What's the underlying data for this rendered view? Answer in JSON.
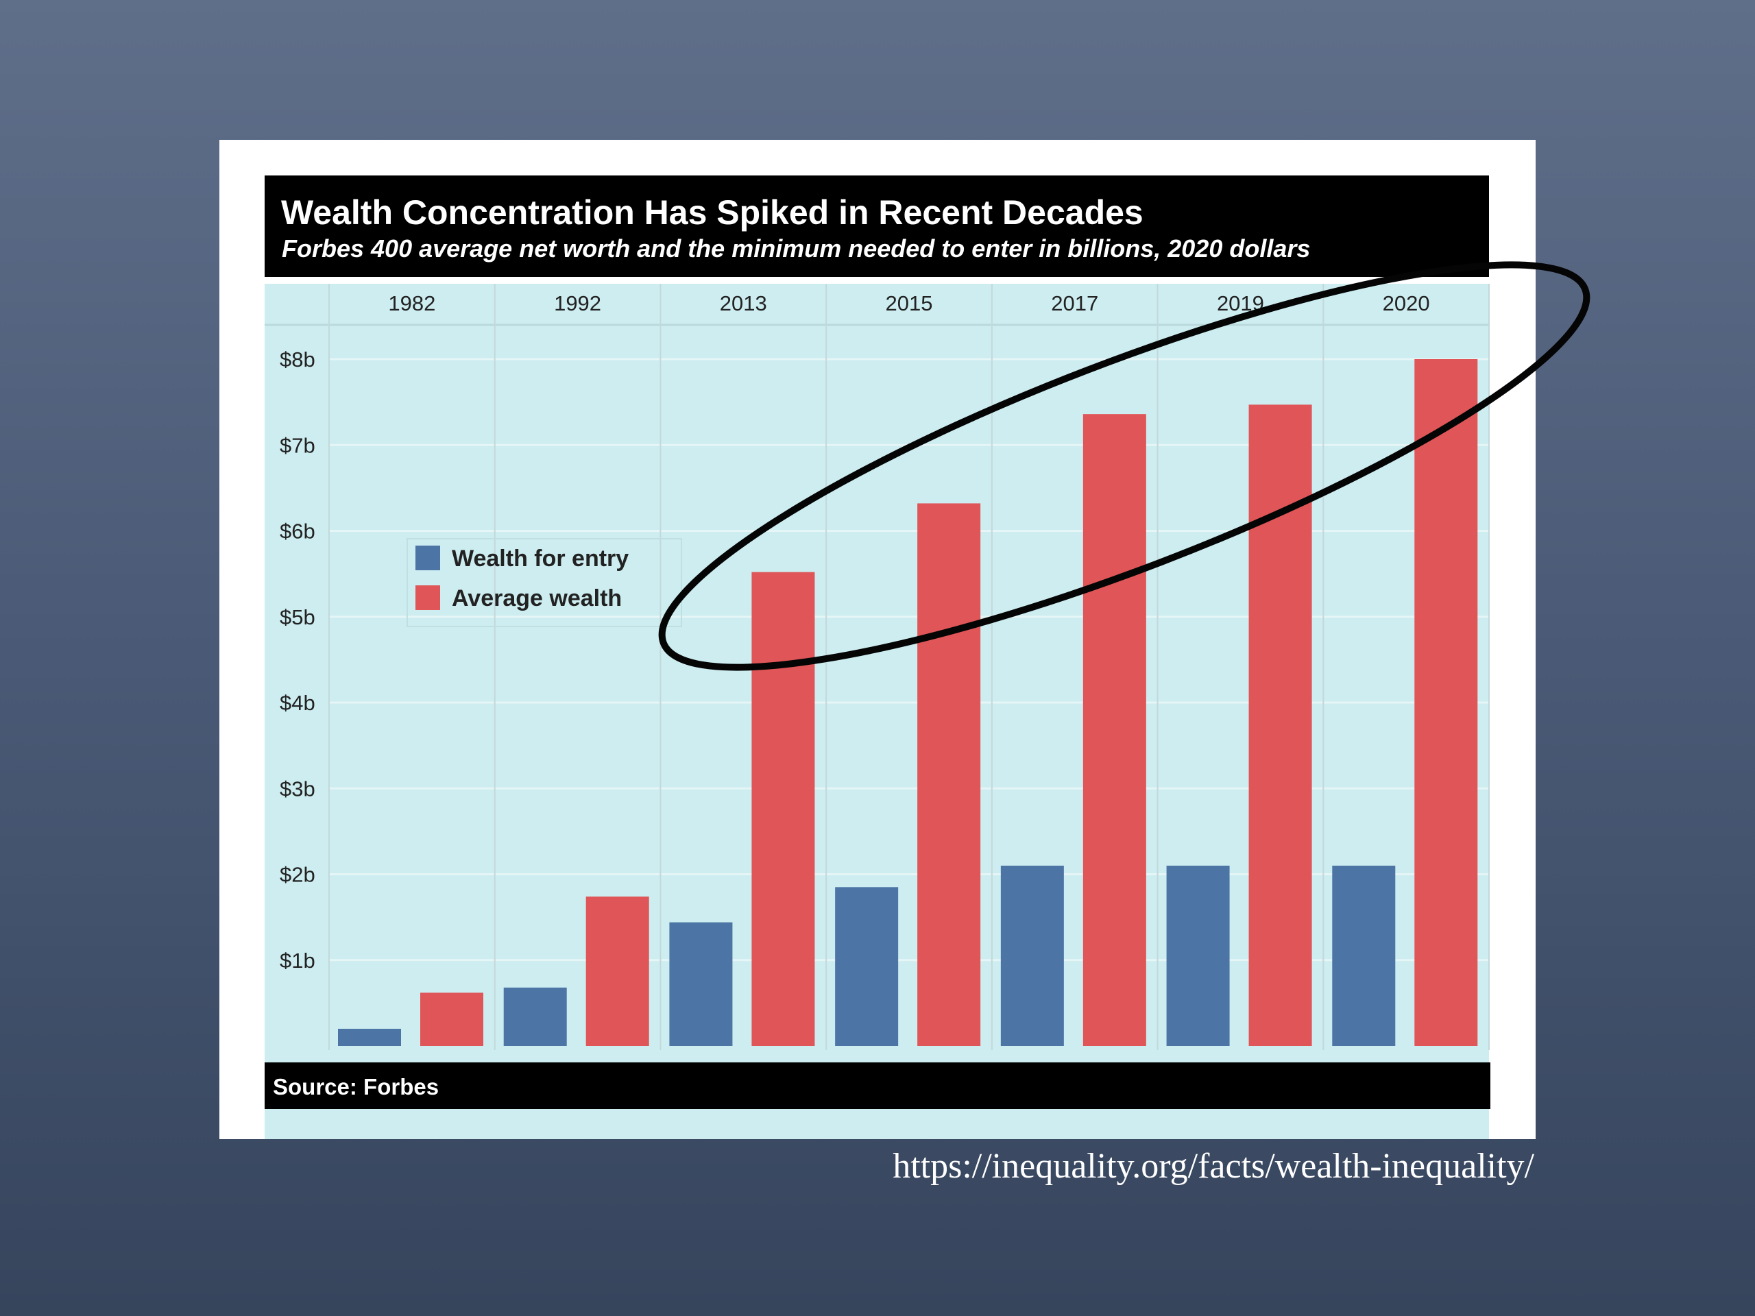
{
  "source_url": "https://inequality.org/facts/wealth-inequality/",
  "chart_data": {
    "type": "bar",
    "title": "Wealth Concentration Has Spiked in Recent Decades",
    "subtitle": "Forbes 400 average net worth and the minimum needed to enter in billions, 2020 dollars",
    "source": "Source: Forbes",
    "categories": [
      "1982",
      "1992",
      "2013",
      "2015",
      "2017",
      "2019",
      "2020"
    ],
    "series": [
      {
        "name": "Wealth for entry",
        "color": "#4c75a6",
        "values": [
          0.2,
          0.68,
          1.44,
          1.85,
          2.1,
          2.1,
          2.1
        ]
      },
      {
        "name": "Average wealth",
        "color": "#e05557",
        "values": [
          0.62,
          1.74,
          5.52,
          6.32,
          7.36,
          7.47,
          8.0
        ]
      }
    ],
    "y_ticks": [
      {
        "value": 1,
        "label": "$1b"
      },
      {
        "value": 2,
        "label": "$2b"
      },
      {
        "value": 3,
        "label": "$3b"
      },
      {
        "value": 4,
        "label": "$4b"
      },
      {
        "value": 5,
        "label": "$5b"
      },
      {
        "value": 6,
        "label": "$6b"
      },
      {
        "value": 7,
        "label": "$7b"
      },
      {
        "value": 8,
        "label": "$8b"
      }
    ],
    "ylim": [
      0,
      8
    ],
    "category_axis_position": "top",
    "grid": true,
    "legend_position": "middle-left",
    "annotation": "hand-drawn ellipse around the 2013–2020 average wealth bars",
    "colors": {
      "plot_background": "#cdedf0",
      "header_background": "#000000",
      "gridline": "#e6f5f6"
    }
  }
}
